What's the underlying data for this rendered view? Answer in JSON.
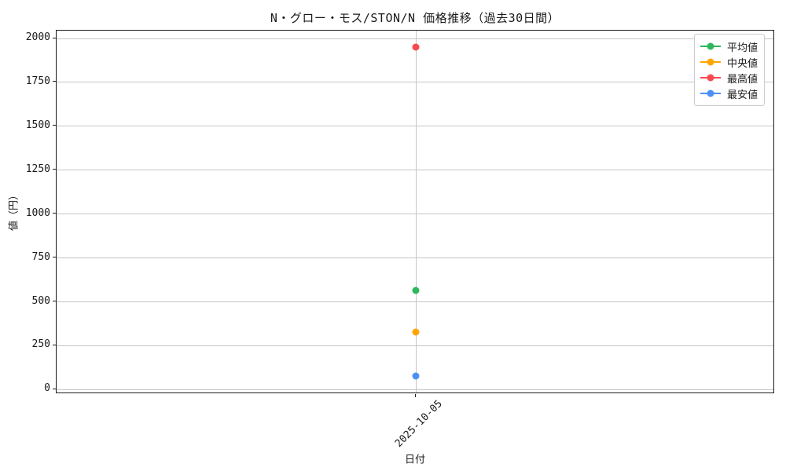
{
  "chart_data": {
    "type": "line",
    "title": "N・グロー・モス/STON/N 価格推移（過去30日間）",
    "xlabel": "日付",
    "ylabel": "値（円）",
    "categories": [
      "2025-10-05"
    ],
    "series": [
      {
        "name": "平均値",
        "values": [
          565
        ],
        "color": "#2eb85c"
      },
      {
        "name": "中央値",
        "values": [
          330
        ],
        "color": "#ffa502"
      },
      {
        "name": "最高値",
        "values": [
          1950
        ],
        "color": "#f8494e"
      },
      {
        "name": "最安値",
        "values": [
          80
        ],
        "color": "#4d90f5"
      }
    ],
    "yticks": [
      0,
      250,
      500,
      750,
      1000,
      1250,
      1500,
      1750,
      2000
    ],
    "ylim": [
      -25,
      2045
    ],
    "grid": true,
    "legend_position": "upper right",
    "background_color": "#ffffff",
    "grid_color": "#c6c6c6"
  }
}
